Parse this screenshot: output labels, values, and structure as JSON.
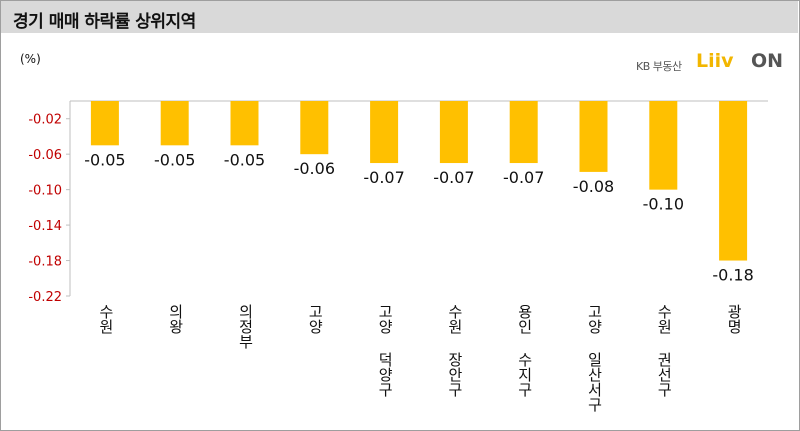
{
  "header": {
    "title": "경기 매매 하락률 상위지역",
    "unit": "(%)"
  },
  "logo": {
    "kb": "KB 부동산",
    "liiv": "Liiv",
    "on": "ON"
  },
  "colors": {
    "bar": "#ffc000",
    "tick": "#c00000",
    "title_bg": "#d9d9d9"
  },
  "chart_data": {
    "type": "bar",
    "title": "경기 매매 하락률 상위지역",
    "ylabel": "(%)",
    "categories": [
      "수원",
      "의왕",
      "의정부",
      "고양",
      "고양 덕양구",
      "수원 장안구",
      "용인 수지구",
      "고양 일산서구",
      "수원 권선구",
      "광명"
    ],
    "values": [
      -0.05,
      -0.05,
      -0.05,
      -0.06,
      -0.07,
      -0.07,
      -0.07,
      -0.08,
      -0.1,
      -0.18
    ],
    "data_labels": [
      "-0.05",
      "-0.05",
      "-0.05",
      "-0.06",
      "-0.07",
      "-0.07",
      "-0.07",
      "-0.08",
      "-0.10",
      "-0.18"
    ],
    "yticks": [
      "-0.02",
      "-0.06",
      "-0.10",
      "-0.14",
      "-0.18",
      "-0.22"
    ],
    "ylim": [
      -0.22,
      0.0
    ],
    "grid": false,
    "legend": "none"
  }
}
